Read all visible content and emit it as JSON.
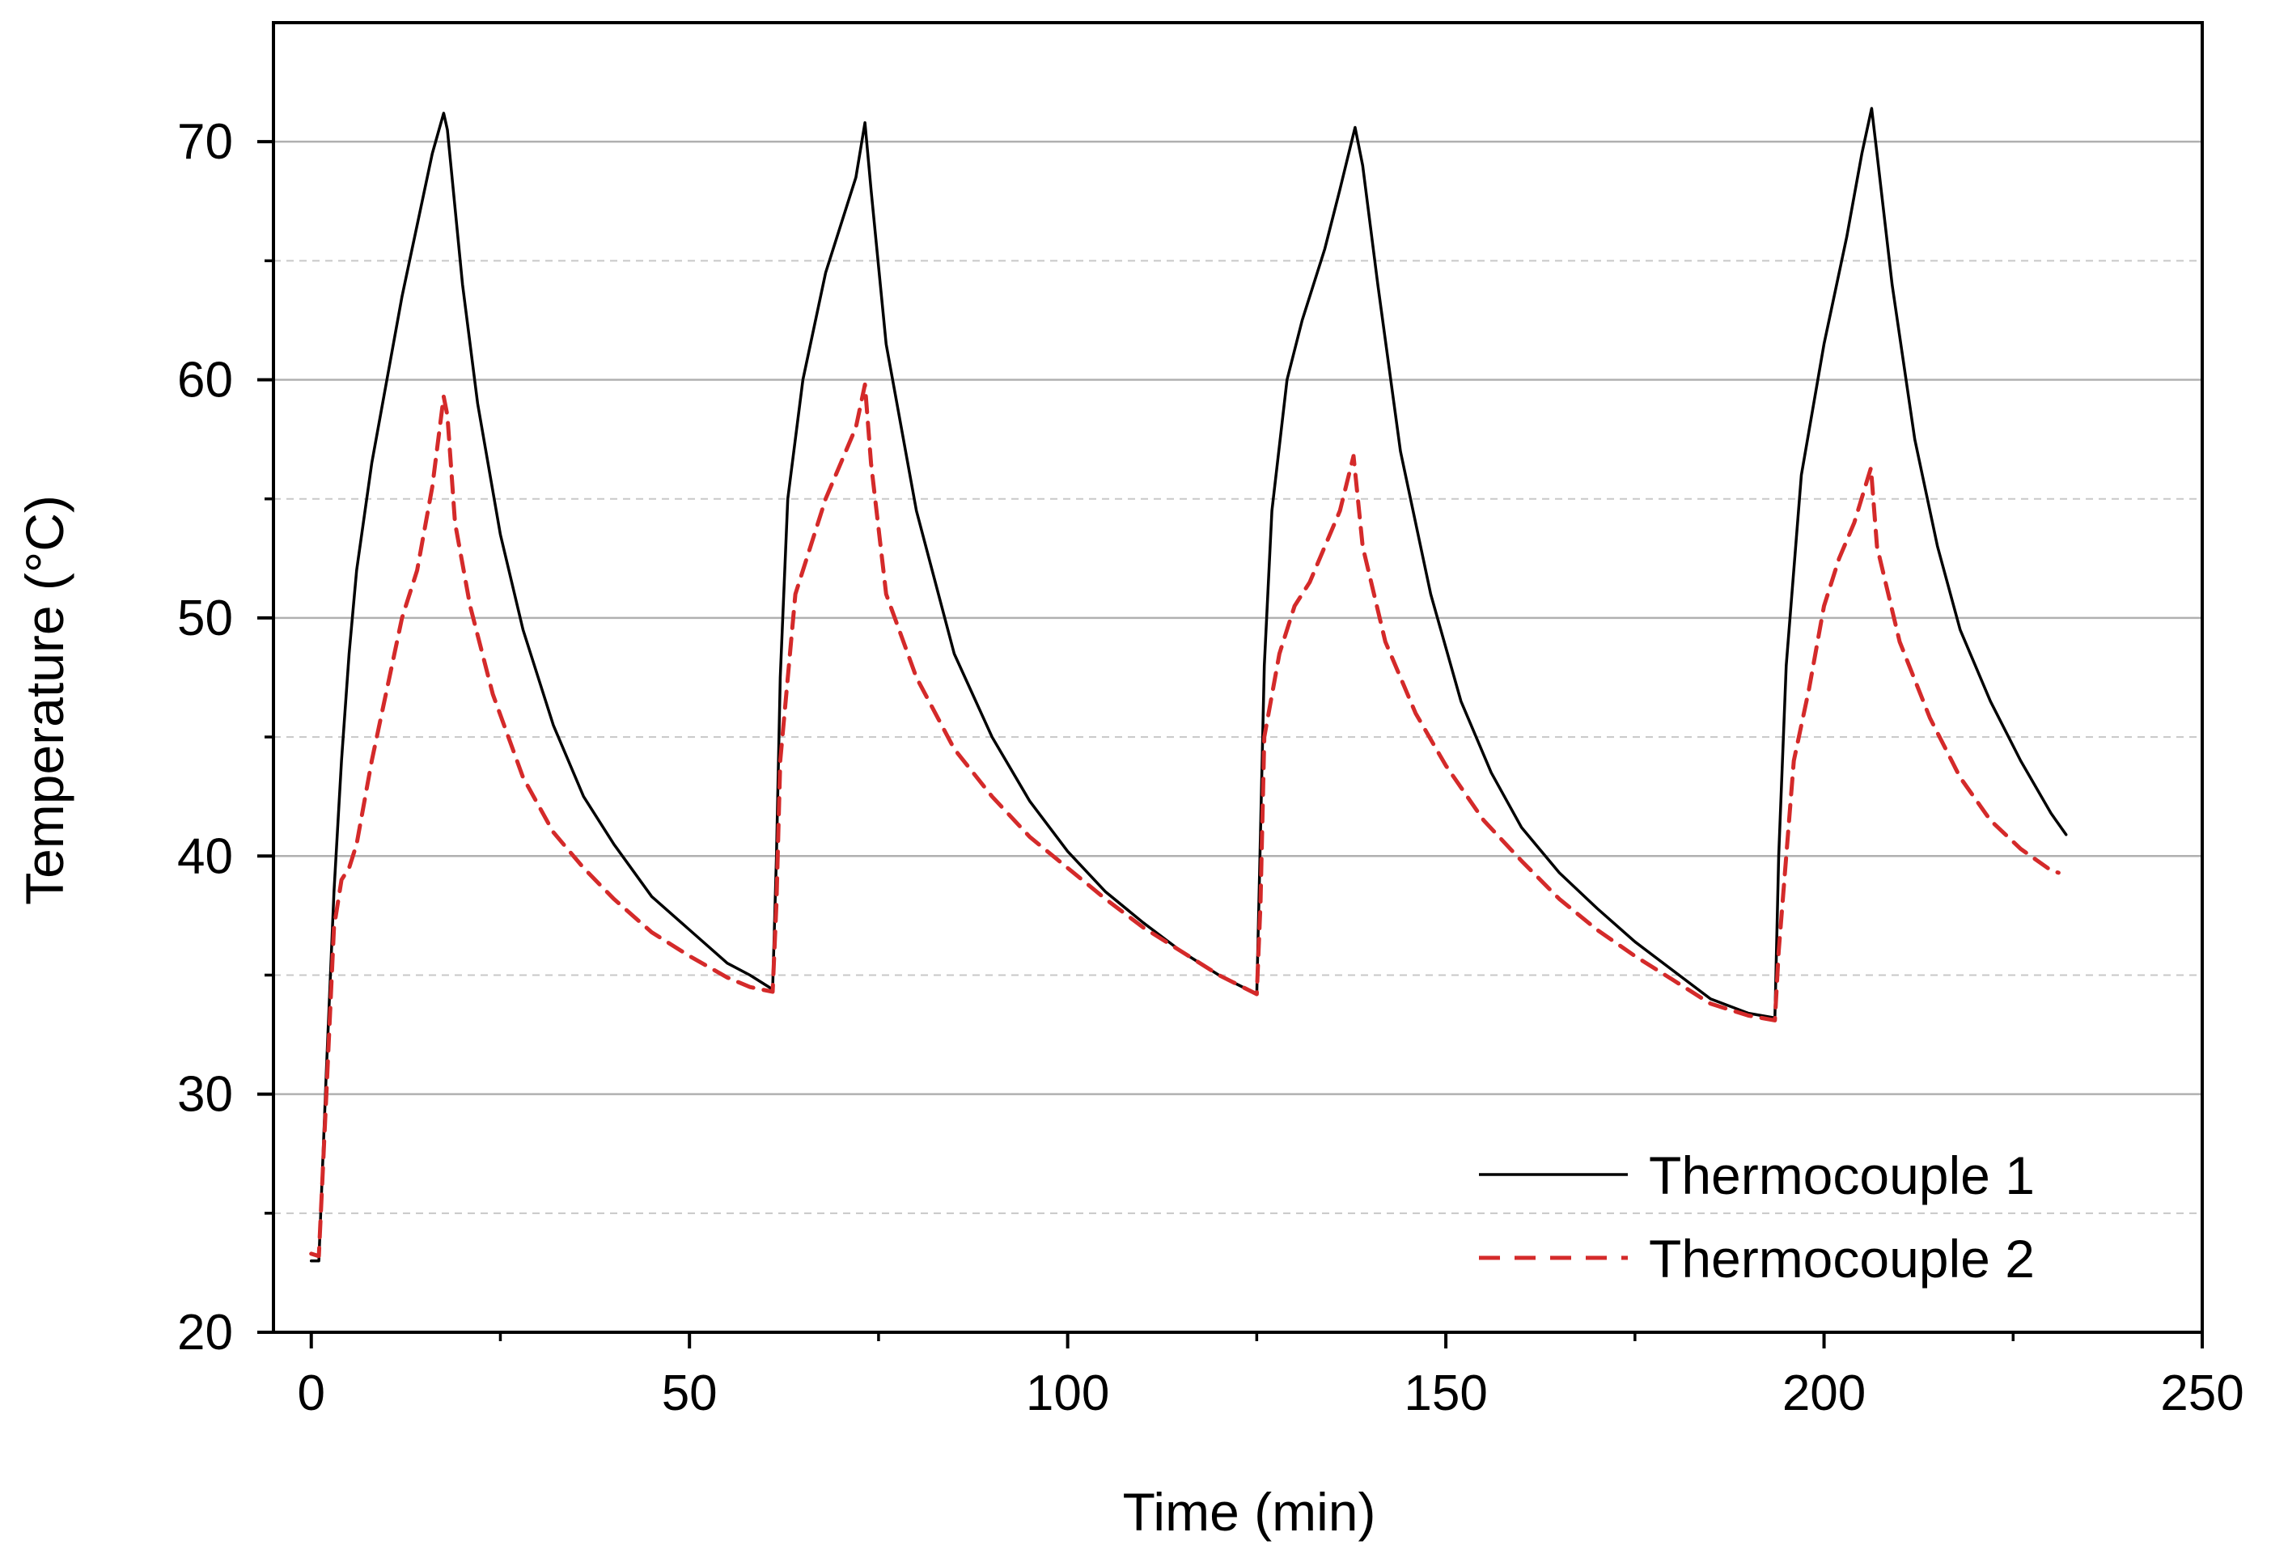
{
  "chart_data": {
    "type": "line",
    "title": "",
    "xlabel": "Time (min)",
    "ylabel": "Temperature (°C)",
    "xlim": [
      -5,
      250
    ],
    "ylim": [
      20,
      75
    ],
    "x_ticks": [
      0,
      50,
      100,
      150,
      200,
      250
    ],
    "x_minor_ticks": [
      25,
      75,
      125,
      175,
      225
    ],
    "y_ticks": [
      20,
      30,
      40,
      50,
      60,
      70
    ],
    "y_minor_ticks": [
      25,
      35,
      45,
      55,
      65
    ],
    "grid": {
      "major": "solid",
      "minor": "dashed",
      "axis": "y"
    },
    "legend_position": "bottom-right",
    "colors": {
      "series1": "#000000",
      "series2": "#d42a2a",
      "major_grid": "#b0b0b0",
      "minor_grid": "#c8c8c8"
    },
    "series": [
      {
        "name": "Thermocouple 1",
        "style": "solid",
        "x": [
          0,
          1,
          2,
          3,
          4,
          5,
          6,
          8,
          10,
          12,
          14,
          16,
          17.5,
          18,
          20,
          22,
          25,
          28,
          32,
          36,
          40,
          45,
          50,
          55,
          58,
          61,
          61.5,
          62,
          63,
          65,
          68,
          70,
          72,
          73.2,
          74,
          76,
          80,
          85,
          90,
          95,
          100,
          105,
          110,
          115,
          120,
          125,
          125.5,
          126,
          127,
          129,
          131,
          134,
          136,
          138,
          139,
          141,
          144,
          148,
          152,
          156,
          160,
          165,
          170,
          175,
          180,
          185,
          190,
          193.5,
          194,
          195,
          197,
          200,
          203,
          205,
          206.3,
          207,
          209,
          212,
          215,
          218,
          222,
          226,
          230,
          232
        ],
        "values": [
          23.0,
          23.0,
          31.0,
          38.5,
          44.0,
          48.5,
          52.0,
          56.5,
          60.0,
          63.5,
          66.5,
          69.5,
          71.2,
          70.5,
          64.0,
          59.0,
          53.5,
          49.5,
          45.5,
          42.5,
          40.5,
          38.3,
          36.9,
          35.5,
          35.0,
          34.4,
          40.0,
          47.5,
          55.0,
          60.0,
          64.5,
          66.5,
          68.5,
          70.8,
          68.0,
          61.5,
          54.5,
          48.5,
          45.0,
          42.3,
          40.2,
          38.5,
          37.2,
          36.0,
          35.0,
          34.2,
          41.0,
          48.0,
          54.5,
          60.0,
          62.5,
          65.5,
          68.0,
          70.6,
          69.0,
          64.0,
          57.0,
          51.0,
          46.5,
          43.5,
          41.2,
          39.3,
          37.8,
          36.4,
          35.2,
          34.0,
          33.4,
          33.2,
          40.0,
          48.0,
          56.0,
          61.5,
          66.0,
          69.5,
          71.4,
          69.5,
          64.0,
          57.5,
          53.0,
          49.5,
          46.5,
          44.0,
          41.8,
          40.9
        ]
      },
      {
        "name": "Thermocouple 2",
        "style": "dashed",
        "x": [
          0,
          1,
          2,
          3,
          4,
          5,
          6,
          8,
          10,
          12,
          14,
          16,
          17.5,
          18,
          19,
          21,
          24,
          28,
          32,
          36,
          40,
          45,
          50,
          55,
          58,
          61,
          61.5,
          62,
          64,
          66,
          68,
          70,
          72,
          73.2,
          74,
          76,
          80,
          85,
          90,
          95,
          100,
          105,
          110,
          115,
          120,
          125,
          125.5,
          126,
          128,
          130,
          132,
          134,
          136,
          137.8,
          139,
          142,
          146,
          150,
          155,
          160,
          165,
          170,
          175,
          180,
          185,
          190,
          193.5,
          194,
          196,
          198,
          200,
          202,
          204,
          206.2,
          207,
          210,
          214,
          218,
          222,
          226,
          230,
          231
        ],
        "values": [
          23.3,
          23.2,
          30.0,
          37.0,
          39.0,
          39.5,
          40.5,
          44.0,
          47.0,
          50.0,
          52.0,
          55.5,
          59.3,
          58.5,
          54.0,
          50.5,
          46.8,
          43.3,
          41.0,
          39.5,
          38.2,
          36.8,
          35.8,
          34.9,
          34.5,
          34.3,
          38.0,
          44.0,
          51.0,
          53.0,
          55.0,
          56.5,
          58.0,
          59.8,
          56.5,
          51.0,
          47.5,
          44.5,
          42.5,
          40.8,
          39.5,
          38.2,
          37.0,
          36.0,
          35.0,
          34.2,
          38.0,
          45.0,
          48.5,
          50.5,
          51.5,
          53.0,
          54.5,
          56.8,
          53.0,
          49.0,
          46.0,
          43.8,
          41.5,
          39.8,
          38.2,
          36.9,
          35.8,
          34.8,
          33.8,
          33.3,
          33.1,
          36.0,
          44.0,
          47.0,
          50.5,
          52.5,
          54.0,
          56.3,
          53.0,
          49.0,
          45.8,
          43.3,
          41.5,
          40.3,
          39.4,
          39.3
        ]
      }
    ]
  }
}
